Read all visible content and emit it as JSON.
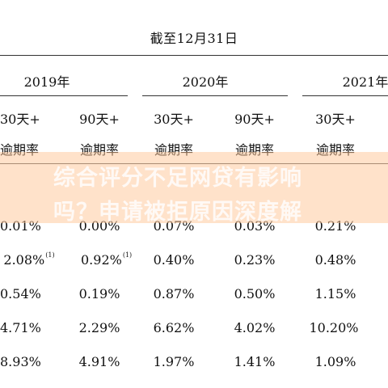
{
  "header": {
    "title": "截至12月31日"
  },
  "years": [
    "2019年",
    "2020年",
    "2021年"
  ],
  "column_headers": [
    {
      "line1": "30天+",
      "line2": "逾期率"
    },
    {
      "line1": "90天+",
      "line2": "逾期率"
    },
    {
      "line1": "30天+",
      "line2": "逾期率"
    },
    {
      "line1": "90天+",
      "line2": "逾期率"
    },
    {
      "line1": "30天+",
      "line2": "逾期率"
    }
  ],
  "rows": [
    [
      "0.01%",
      "0.00%",
      "0.07%",
      "0.03%",
      "0.21%"
    ],
    [
      "2.08%",
      "0.92%",
      "0.40%",
      "0.23%",
      "0.48%"
    ],
    [
      "0.54%",
      "0.19%",
      "0.87%",
      "0.50%",
      "1.15%"
    ],
    [
      "4.71%",
      "2.29%",
      "6.62%",
      "4.02%",
      "10.20%"
    ],
    [
      "8.93%",
      "4.91%",
      "1.97%",
      "1.41%",
      "1.09%"
    ]
  ],
  "footnotes": {
    "row1_col1": "(1)",
    "row1_col2": "(1)"
  },
  "overlay": {
    "line1": "综合评分不足网贷有影响",
    "line2": "吗？申请被拒原因深度解",
    "band_color": "#ffc696"
  }
}
